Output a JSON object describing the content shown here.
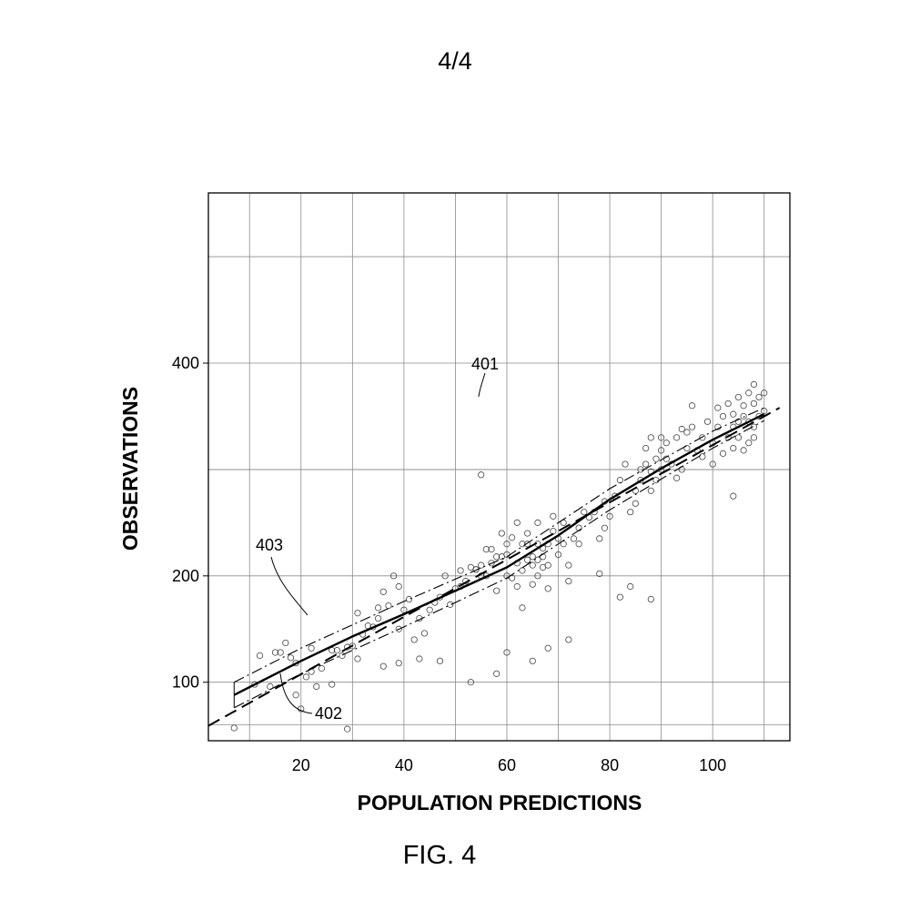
{
  "page": {
    "sheet_number": "4/4",
    "figure_label": "FIG. 4"
  },
  "chart_data": {
    "type": "scatter",
    "xlabel": "POPULATION PREDICTIONS",
    "ylabel": "OBSERVATIONS",
    "xlim": [
      2,
      115
    ],
    "ylim": [
      45,
      560
    ],
    "xticks": [
      20,
      40,
      60,
      80,
      100
    ],
    "yticks": [
      100,
      200,
      400
    ],
    "grid": true,
    "reference_labels": [
      {
        "text": "401",
        "points_to": "scatter-point"
      },
      {
        "text": "402",
        "points_to": "identity-line"
      },
      {
        "text": "403",
        "points_to": "fitted-line"
      }
    ],
    "lines": [
      {
        "style": "solid-thick",
        "x": [
          7,
          20,
          30,
          40,
          50,
          60,
          70,
          80,
          90,
          100,
          110
        ],
        "y": [
          88,
          120,
          143,
          164,
          186,
          208,
          238,
          272,
          301,
          328,
          352
        ]
      },
      {
        "style": "dashed",
        "x": [
          2,
          113
        ],
        "y": [
          59,
          358
        ]
      },
      {
        "style": "dash-dot",
        "x": [
          7,
          20,
          40,
          60,
          80,
          100,
          110
        ],
        "y": [
          100,
          132,
          176,
          218,
          282,
          336,
          358
        ]
      },
      {
        "style": "dash-dot",
        "x": [
          7,
          20,
          40,
          60,
          80,
          100,
          110
        ],
        "y": [
          76,
          108,
          152,
          198,
          262,
          320,
          346
        ]
      }
    ],
    "band_edge": {
      "x": [
        7,
        7
      ],
      "y": [
        76,
        100
      ]
    },
    "points": {
      "x": [
        7,
        11,
        14,
        15,
        17,
        18,
        19,
        20,
        21,
        22,
        23,
        24,
        26,
        27,
        28,
        29,
        29,
        30,
        31,
        32,
        33,
        34,
        35,
        35,
        36,
        37,
        38,
        39,
        39,
        40,
        41,
        42,
        43,
        44,
        45,
        46,
        47,
        48,
        49,
        50,
        51,
        51,
        52,
        53,
        54,
        54,
        55,
        55,
        56,
        56,
        57,
        57,
        58,
        58,
        59,
        59,
        60,
        60,
        60,
        61,
        61,
        62,
        62,
        63,
        63,
        63,
        64,
        64,
        64,
        65,
        65,
        65,
        66,
        66,
        66,
        67,
        67,
        67,
        68,
        68,
        68,
        69,
        69,
        70,
        70,
        71,
        71,
        72,
        72,
        73,
        74,
        75,
        76,
        77,
        78,
        79,
        79,
        80,
        81,
        82,
        83,
        84,
        85,
        85,
        86,
        86,
        87,
        87,
        88,
        88,
        88,
        89,
        89,
        90,
        90,
        91,
        91,
        92,
        93,
        93,
        94,
        94,
        95,
        95,
        96,
        97,
        98,
        99,
        100,
        100,
        101,
        101,
        102,
        102,
        103,
        103,
        104,
        104,
        104,
        105,
        105,
        105,
        106,
        106,
        106,
        107,
        107,
        107,
        108,
        108,
        108,
        109,
        109,
        110,
        110,
        55,
        62,
        66,
        74,
        78,
        84,
        90,
        96,
        60,
        68,
        72,
        82,
        88,
        98,
        104,
        108,
        65,
        58,
        53,
        47,
        43,
        39,
        36,
        31,
        26,
        22,
        19,
        16,
        12
      ],
      "y": [
        57,
        98,
        96,
        128,
        137,
        123,
        88,
        75,
        105,
        110,
        96,
        113,
        98,
        130,
        125,
        133,
        56,
        134,
        165,
        145,
        153,
        152,
        160,
        170,
        185,
        172,
        200,
        190,
        150,
        168,
        178,
        140,
        160,
        146,
        168,
        175,
        180,
        200,
        173,
        188,
        190,
        205,
        195,
        208,
        206,
        206,
        210,
        200,
        225,
        200,
        225,
        212,
        218,
        186,
        240,
        218,
        200,
        230,
        220,
        236,
        198,
        212,
        190,
        230,
        205,
        170,
        230,
        215,
        240,
        218,
        192,
        210,
        230,
        250,
        200,
        218,
        208,
        226,
        230,
        210,
        188,
        242,
        256,
        220,
        235,
        250,
        230,
        210,
        195,
        235,
        245,
        260,
        255,
        260,
        235,
        245,
        270,
        256,
        275,
        290,
        305,
        260,
        280,
        268,
        290,
        300,
        320,
        305,
        330,
        298,
        280,
        310,
        290,
        318,
        300,
        325,
        310,
        305,
        330,
        292,
        338,
        300,
        320,
        335,
        340,
        318,
        330,
        345,
        325,
        305,
        340,
        358,
        350,
        315,
        330,
        362,
        352,
        340,
        320,
        345,
        368,
        330,
        350,
        360,
        318,
        372,
        345,
        325,
        380,
        362,
        340,
        368,
        350,
        355,
        372,
        295,
        250,
        215,
        230,
        202,
        190,
        330,
        360,
        128,
        132,
        140,
        180,
        178,
        312,
        275,
        330,
        120,
        108,
        100,
        120,
        122,
        118,
        115,
        122,
        130,
        132,
        118,
        128,
        125
      ]
    }
  }
}
